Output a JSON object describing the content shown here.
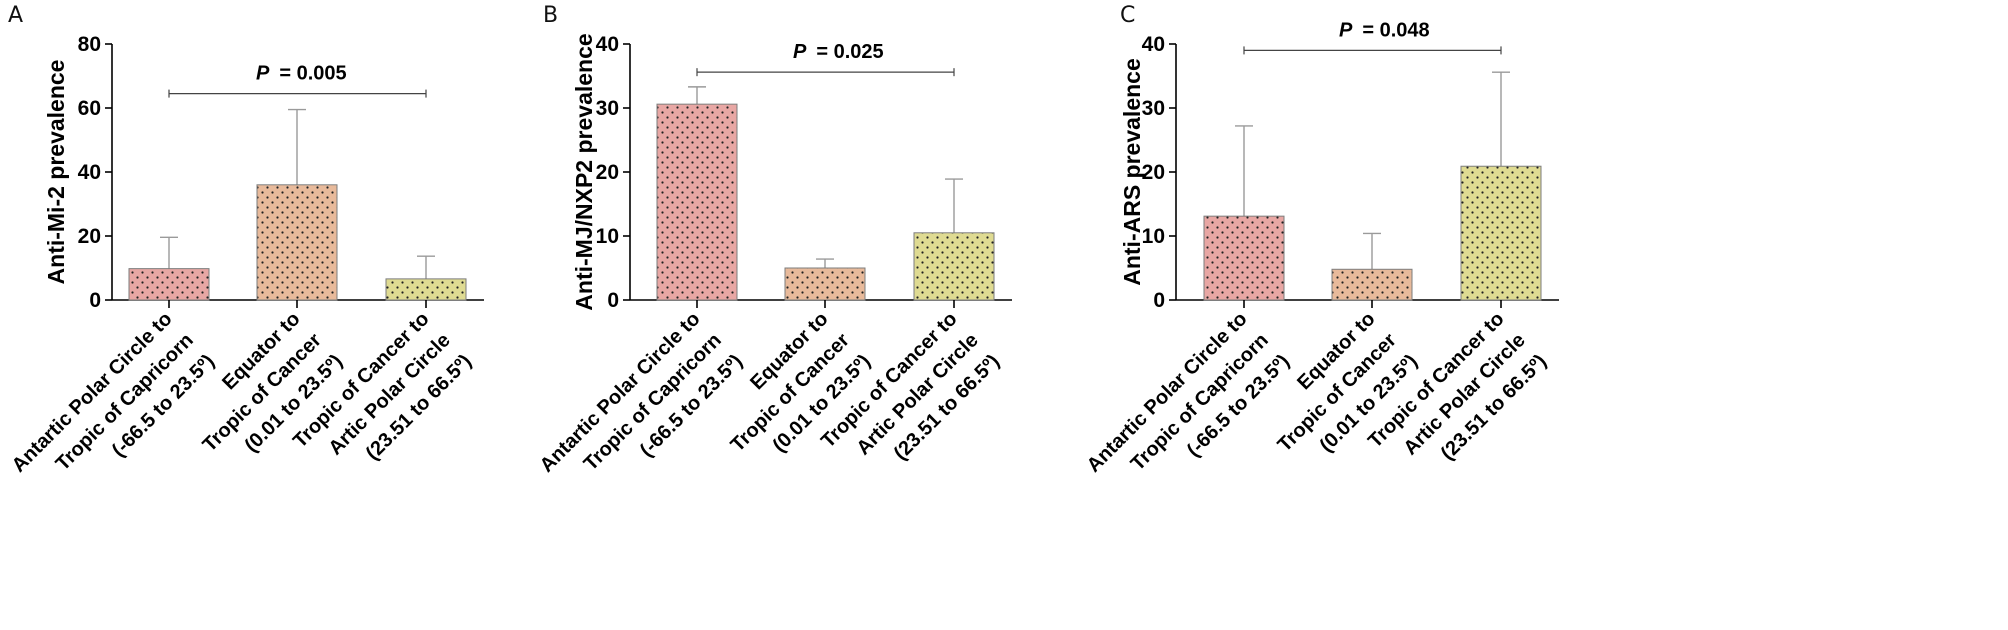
{
  "chart_data": [
    {
      "panel": "A",
      "type": "bar",
      "ylabel": "Anti-Mi-2 prevalence",
      "ylim": [
        0,
        80
      ],
      "yticks": [
        0,
        20,
        40,
        60,
        80
      ],
      "categories": [
        [
          "Antartic Polar Circle to",
          "Tropic of Capricorn",
          "(-66.5 to 23.5º)"
        ],
        [
          "Equator to",
          "Tropic of Cancer",
          "(0.01 to 23.5º)"
        ],
        [
          "Tropic of Cancer to",
          "Artic Polar Circle",
          "(23.51 to 66.5º)"
        ]
      ],
      "values": [
        9.8,
        36.0,
        6.6
      ],
      "errors": [
        19.6,
        59.5,
        13.7
      ],
      "pvalue": {
        "prefix": "P",
        "text": "= 0.005",
        "y": 64.5
      }
    },
    {
      "panel": "B",
      "type": "bar",
      "ylabel": "Anti-MJ/NXP2 prevalence",
      "ylim": [
        0,
        40
      ],
      "yticks": [
        0,
        10,
        20,
        30,
        40
      ],
      "categories": [
        [
          "Antartic Polar Circle to",
          "Tropic of Capricorn",
          "(-66.5 to 23.5º)"
        ],
        [
          "Equator to",
          "Tropic of Cancer",
          "(0.01 to 23.5º)"
        ],
        [
          "Tropic of Cancer to",
          "Artic Polar Circle",
          "(23.51 to 66.5º)"
        ]
      ],
      "values": [
        30.6,
        5.0,
        10.5
      ],
      "errors": [
        33.3,
        6.4,
        18.9
      ],
      "pvalue": {
        "prefix": "P",
        "text": "= 0.025",
        "y": 35.6
      }
    },
    {
      "panel": "C",
      "type": "bar",
      "ylabel": "Anti-ARS prevalence",
      "ylim": [
        0,
        40
      ],
      "yticks": [
        0,
        10,
        20,
        30,
        40
      ],
      "categories": [
        [
          "Antartic Polar Circle to",
          "Tropic of Capricorn",
          "(-66.5 to 23.5º)"
        ],
        [
          "Equator to",
          "Tropic of Cancer",
          "(0.01 to 23.5º)"
        ],
        [
          "Tropic of Cancer to",
          "Artic Polar Circle",
          "(23.51 to 66.5º)"
        ]
      ],
      "values": [
        13.1,
        4.8,
        20.9
      ],
      "errors": [
        27.2,
        10.4,
        35.6
      ],
      "pvalue": {
        "prefix": "P",
        "text": "= 0.048",
        "y": 39.0
      }
    }
  ],
  "colors": {
    "bar_fill": [
      "#e8a7a4",
      "#e8ba9b",
      "#dfdb92"
    ],
    "dot": "#1f1f1f",
    "axis": "#000000",
    "error": "#9a9a9a"
  }
}
